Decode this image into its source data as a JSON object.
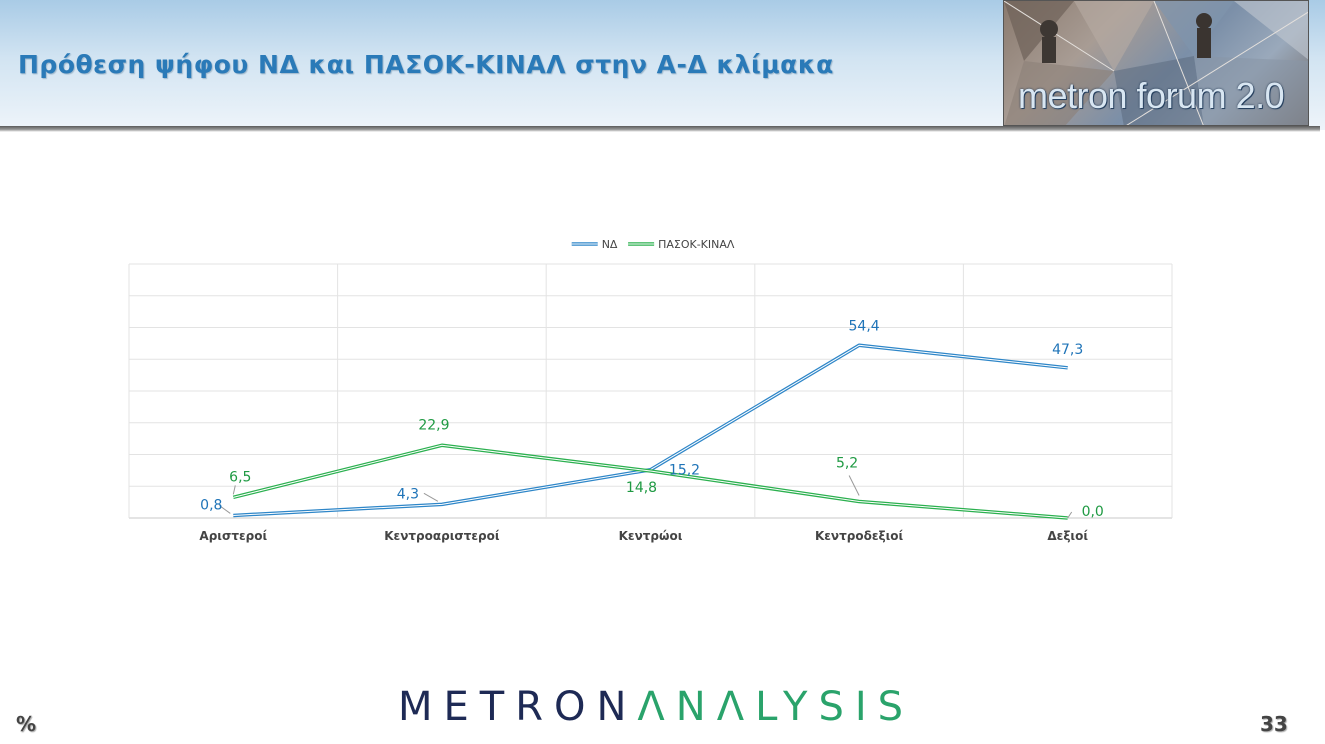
{
  "header": {
    "title": "Πρόθεση ψήφου ΝΔ και ΠΑΣΟΚ-ΚΙΝΑΛ στην Α-Δ κλίμακα",
    "logo_text": "metron forum 2.0"
  },
  "footer": {
    "unit_label": "%",
    "page_number": "33",
    "brand_part1": "METRON",
    "brand_part2": "ΛNΛLYSIS"
  },
  "colors": {
    "series_nd": "#2e86c8",
    "series_pasok": "#2bb04f",
    "label_nd": "#1f74b8",
    "label_pasok": "#1f9a43"
  },
  "chart_data": {
    "type": "line",
    "categories": [
      "Αριστεροί",
      "Κεντροαριστεροί",
      "Κεντρώοι",
      "Κεντροδεξιοί",
      "Δεξιοί"
    ],
    "series": [
      {
        "name": "ΝΔ",
        "values": [
          0.8,
          4.3,
          15.2,
          54.4,
          47.3
        ],
        "labels": [
          "0,8",
          "4,3",
          "15,2",
          "54,4",
          "47,3"
        ]
      },
      {
        "name": "ΠΑΣΟΚ-ΚΙΝΑΛ",
        "values": [
          6.5,
          22.9,
          14.8,
          5.2,
          0.0
        ],
        "labels": [
          "6,5",
          "22,9",
          "14,8",
          "5,2",
          "0,0"
        ]
      }
    ],
    "ylim": [
      0,
      80
    ],
    "grid": true,
    "legend": "top-center"
  }
}
